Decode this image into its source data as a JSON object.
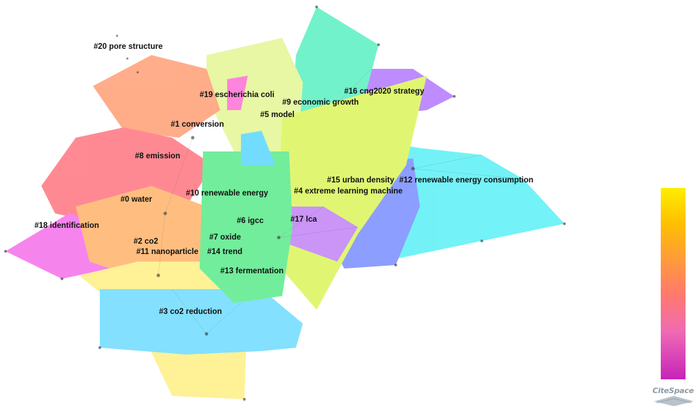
{
  "network": {
    "clusters": [
      {
        "id": 0,
        "label": "#0 water",
        "color": "#ff2a3a"
      },
      {
        "id": 1,
        "label": "#1 conversion",
        "color": "#ff6a2a"
      },
      {
        "id": 2,
        "label": "#2 co2",
        "color": "#ff8a1a"
      },
      {
        "id": 3,
        "label": "#3 co2 reduction",
        "color": "#ffe640"
      },
      {
        "id": 4,
        "label": "#4 extreme learning machine",
        "color": "#b4f000"
      },
      {
        "id": 5,
        "label": "#5 model",
        "color": "#3cd86a"
      },
      {
        "id": 6,
        "label": "#6 igcc",
        "color": "#00e04a"
      },
      {
        "id": 7,
        "label": "#7 oxide",
        "color": "#00d870"
      },
      {
        "id": 8,
        "label": "#8 emission",
        "color": "#ff5a2a"
      },
      {
        "id": 9,
        "label": "#9 economic growth",
        "color": "#00c0c0"
      },
      {
        "id": 10,
        "label": "#10 renewable energy",
        "color": "#40e030"
      },
      {
        "id": 11,
        "label": "#11 nanoparticle",
        "color": "#ff9a30"
      },
      {
        "id": 12,
        "label": "#12 renewable energy consumption",
        "color": "#00e8f0"
      },
      {
        "id": 13,
        "label": "#13 fermentation",
        "color": "#00d0b0"
      },
      {
        "id": 14,
        "label": "#14 trend",
        "color": "#20c8ff"
      },
      {
        "id": 15,
        "label": "#15 urban density",
        "color": "#3050ff"
      },
      {
        "id": 16,
        "label": "#16 cng2020 strategy",
        "color": "#8a30ff"
      },
      {
        "id": 17,
        "label": "#17 lca",
        "color": "#a040f0"
      },
      {
        "id": 18,
        "label": "#18 identification",
        "color": "#f020e0"
      },
      {
        "id": 19,
        "label": "#19 escherichia coli",
        "color": "#ff20c0"
      },
      {
        "id": 20,
        "label": "#20 pore structure",
        "color": "#bbbbbb"
      }
    ]
  },
  "legend": {
    "gradient_top": "#ffee00",
    "gradient_bottom": "#c624b8"
  },
  "brand": {
    "text": "CiteSpace"
  }
}
